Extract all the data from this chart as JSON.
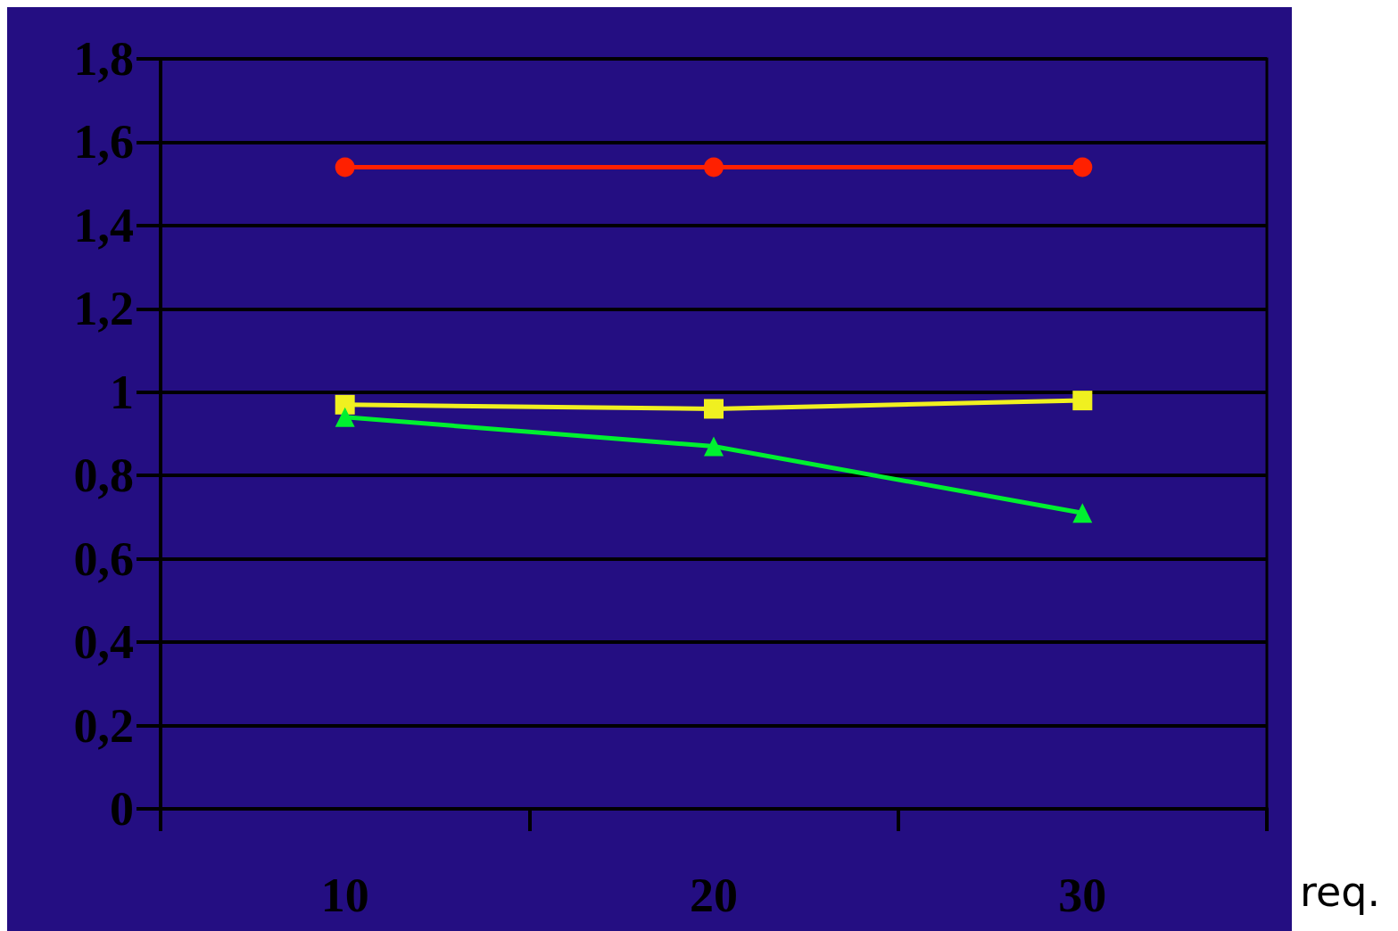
{
  "chart_data": {
    "type": "line",
    "xlabel": "req.",
    "categories": [
      "10",
      "20",
      "30"
    ],
    "series": [
      {
        "color": "#ff2000",
        "marker": "circle",
        "values": [
          1.54,
          1.54,
          1.54
        ]
      },
      {
        "color": "#f0f020",
        "marker": "square",
        "values": [
          0.97,
          0.96,
          0.98
        ]
      },
      {
        "color": "#00f030",
        "marker": "triangle",
        "values": [
          0.94,
          0.87,
          0.71
        ]
      }
    ],
    "ylim": [
      0,
      1.8
    ],
    "yticks": [
      {
        "value": 0,
        "label": "0"
      },
      {
        "value": 0.2,
        "label": "0,2"
      },
      {
        "value": 0.4,
        "label": "0,4"
      },
      {
        "value": 0.6,
        "label": "0,6"
      },
      {
        "value": 0.8,
        "label": "0,8"
      },
      {
        "value": 1,
        "label": "1"
      },
      {
        "value": 1.2,
        "label": "1,2"
      },
      {
        "value": 1.4,
        "label": "1,4"
      },
      {
        "value": 1.6,
        "label": "1,6"
      },
      {
        "value": 1.8,
        "label": "1,8"
      }
    ],
    "grid": "y"
  }
}
